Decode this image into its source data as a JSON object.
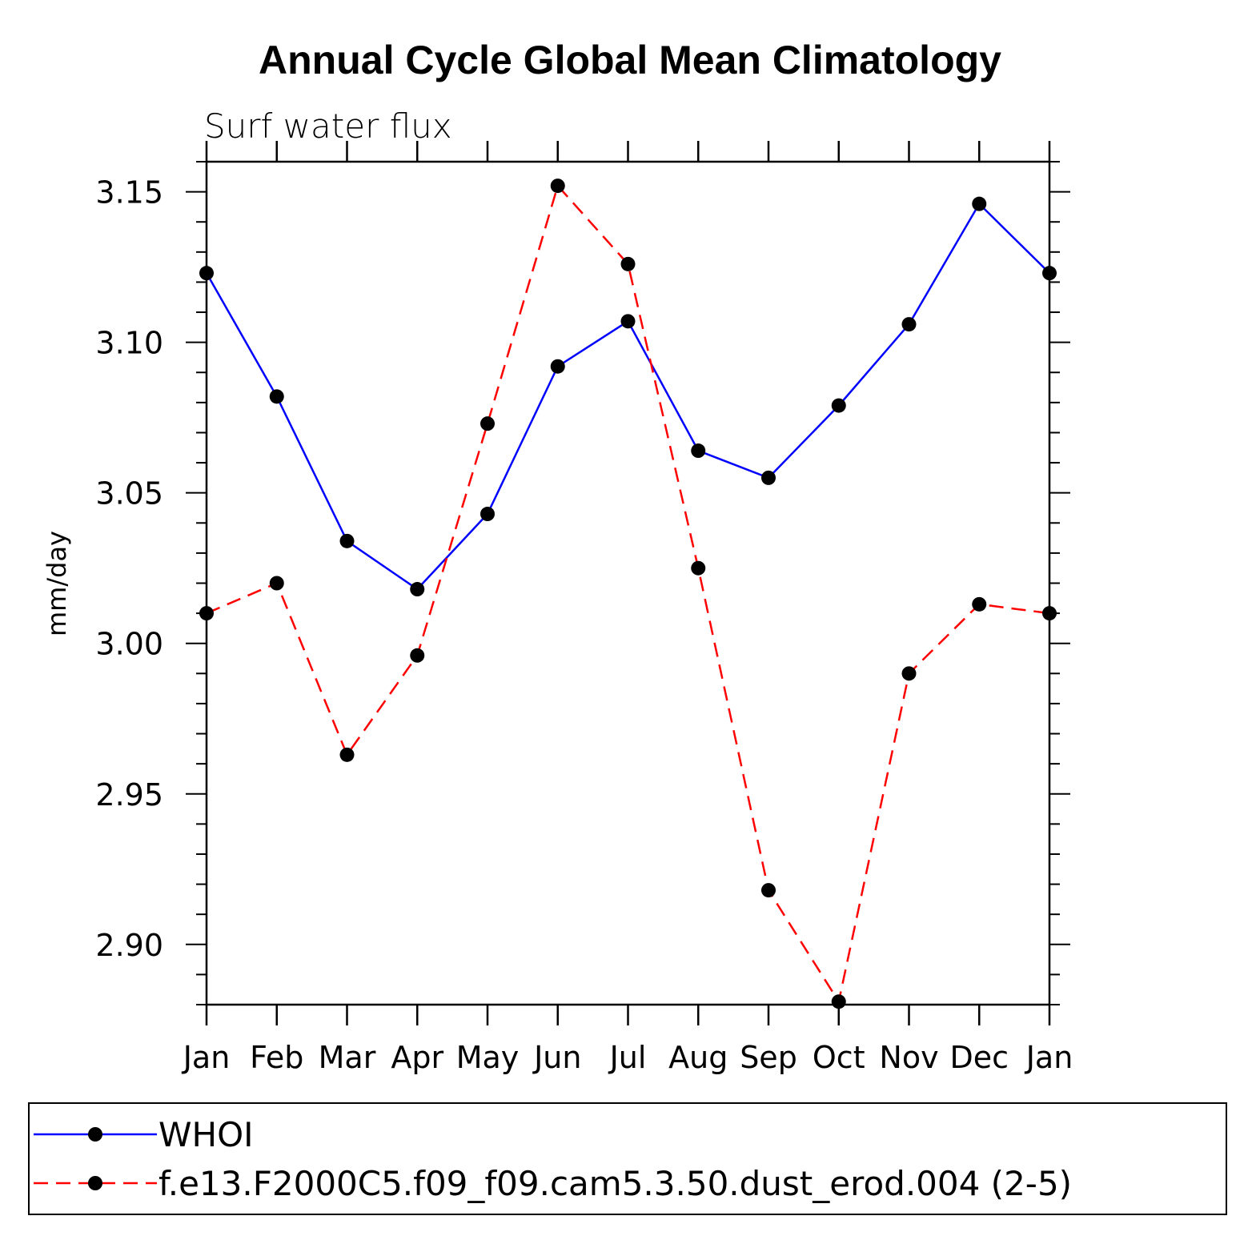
{
  "chart_data": {
    "type": "line",
    "title": "Annual Cycle Global Mean Climatology",
    "subtitle": "Surf water flux",
    "ylabel": "mm/day",
    "xlabel": "",
    "categories": [
      "Jan",
      "Feb",
      "Mar",
      "Apr",
      "May",
      "Jun",
      "Jul",
      "Aug",
      "Sep",
      "Oct",
      "Nov",
      "Dec",
      "Jan"
    ],
    "ylim": [
      2.88,
      3.16
    ],
    "yticks": [
      2.9,
      2.95,
      3.0,
      3.05,
      3.1,
      3.15
    ],
    "ytick_labels": [
      "2.90",
      "2.95",
      "3.00",
      "3.05",
      "3.10",
      "3.15"
    ],
    "grid": false,
    "legend_position": "bottom",
    "series": [
      {
        "name": "WHOI",
        "color": "#0000ff",
        "style": "solid",
        "marker": "filled-circle",
        "values": [
          3.123,
          3.082,
          3.034,
          3.018,
          3.043,
          3.092,
          3.107,
          3.064,
          3.055,
          3.079,
          3.106,
          3.146,
          3.123
        ]
      },
      {
        "name": "f.e13.F2000C5.f09_f09.cam5.3.50.dust_erod.004 (2-5)",
        "color": "#ff0000",
        "style": "dashed",
        "marker": "filled-circle",
        "values": [
          3.01,
          3.02,
          2.963,
          2.996,
          3.073,
          3.152,
          3.126,
          3.025,
          2.918,
          2.881,
          2.99,
          3.013,
          3.01
        ]
      }
    ]
  }
}
